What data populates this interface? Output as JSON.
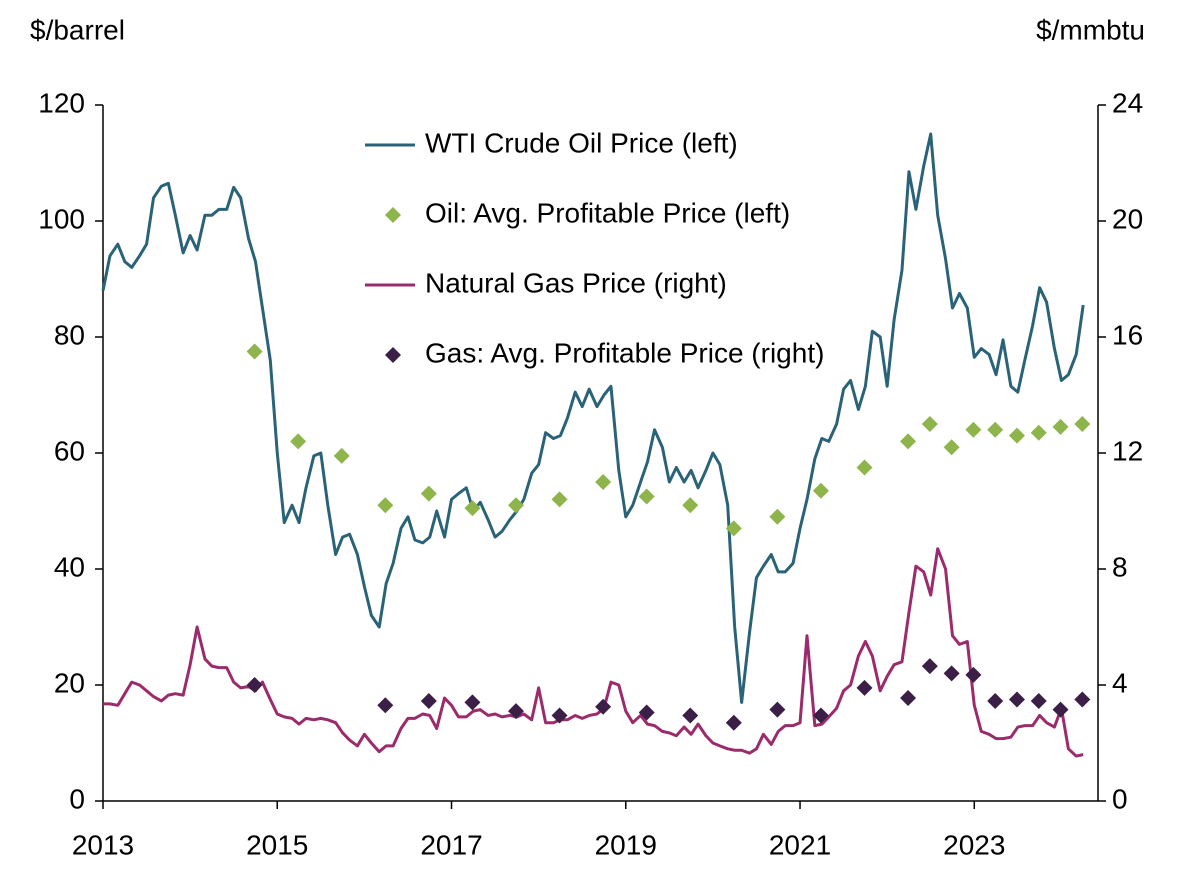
{
  "chart_data": {
    "type": "line",
    "y_label": "$/barrel",
    "y2_label": "$/mmbtu",
    "xlim": [
      2013,
      2024.42
    ],
    "xticks": [
      2013,
      2015,
      2017,
      2019,
      2021,
      2023
    ],
    "ylim": [
      0,
      120
    ],
    "yticks": [
      0,
      20,
      40,
      60,
      80,
      100,
      120
    ],
    "y2lim": [
      0,
      24
    ],
    "y2ticks": [
      0,
      4,
      8,
      12,
      16,
      20,
      24
    ],
    "grid": false,
    "x": [
      2013,
      2013.08,
      2013.17,
      2013.25,
      2013.33,
      2013.42,
      2013.5,
      2013.58,
      2013.67,
      2013.75,
      2013.83,
      2013.92,
      2014,
      2014.08,
      2014.17,
      2014.25,
      2014.33,
      2014.42,
      2014.5,
      2014.58,
      2014.67,
      2014.75,
      2014.83,
      2014.92,
      2015,
      2015.08,
      2015.17,
      2015.25,
      2015.33,
      2015.42,
      2015.5,
      2015.58,
      2015.67,
      2015.75,
      2015.83,
      2015.92,
      2016,
      2016.08,
      2016.17,
      2016.25,
      2016.33,
      2016.42,
      2016.5,
      2016.58,
      2016.67,
      2016.75,
      2016.83,
      2016.92,
      2017,
      2017.08,
      2017.17,
      2017.25,
      2017.33,
      2017.42,
      2017.5,
      2017.58,
      2017.67,
      2017.75,
      2017.83,
      2017.92,
      2018,
      2018.08,
      2018.17,
      2018.25,
      2018.33,
      2018.42,
      2018.5,
      2018.58,
      2018.67,
      2018.75,
      2018.83,
      2018.92,
      2019,
      2019.08,
      2019.17,
      2019.25,
      2019.33,
      2019.42,
      2019.5,
      2019.58,
      2019.67,
      2019.75,
      2019.83,
      2019.92,
      2020,
      2020.08,
      2020.17,
      2020.25,
      2020.33,
      2020.42,
      2020.5,
      2020.58,
      2020.67,
      2020.75,
      2020.83,
      2020.92,
      2021,
      2021.08,
      2021.17,
      2021.25,
      2021.33,
      2021.42,
      2021.5,
      2021.58,
      2021.67,
      2021.75,
      2021.83,
      2021.92,
      2022,
      2022.08,
      2022.17,
      2022.25,
      2022.33,
      2022.42,
      2022.5,
      2022.58,
      2022.67,
      2022.75,
      2022.83,
      2022.92,
      2023,
      2023.08,
      2023.17,
      2023.25,
      2023.33,
      2023.42,
      2023.5,
      2023.58,
      2023.67,
      2023.75,
      2023.83,
      2023.92,
      2024,
      2024.08,
      2024.17,
      2024.25
    ],
    "series": [
      {
        "name": "WTI Crude Oil Price (left)",
        "type": "line",
        "axis": "y",
        "color": "#2a6378",
        "values": [
          88,
          94,
          96,
          93,
          92,
          94,
          96,
          104,
          106,
          106.5,
          101,
          94.5,
          97.5,
          95,
          101,
          101,
          102,
          102,
          105.8,
          104,
          97,
          93,
          85,
          76,
          60,
          48,
          51,
          48,
          54,
          59.5,
          60,
          51,
          42.5,
          45.5,
          46,
          42.5,
          37,
          32,
          30,
          37.5,
          41,
          47,
          49,
          45,
          44.5,
          45.5,
          50,
          45.5,
          52,
          53,
          54,
          50,
          51.5,
          48.5,
          45.5,
          46.5,
          48.5,
          50,
          52,
          56.5,
          58,
          63.5,
          62.5,
          63,
          66,
          70.5,
          68,
          71,
          68,
          70,
          71.5,
          57,
          49,
          51,
          55,
          58.5,
          64,
          61,
          55,
          57.5,
          55,
          57,
          54,
          57,
          60,
          58,
          51,
          30,
          17,
          29,
          38.5,
          40.5,
          42.5,
          39.5,
          39.5,
          41,
          47,
          52,
          59,
          62.5,
          62,
          65,
          71,
          72.5,
          67.5,
          71.5,
          81,
          80,
          71.5,
          83,
          91.5,
          108.5,
          102,
          109.5,
          115,
          101,
          93.5,
          85,
          87.5,
          85,
          76.5,
          78,
          77,
          73.5,
          79.5,
          71.5,
          70.5,
          76,
          82,
          88.5,
          86,
          78,
          72.5,
          73.5,
          77,
          85.5
        ]
      },
      {
        "name": "Oil: Avg. Profitable Price (left)",
        "type": "scatter",
        "axis": "y",
        "color": "#8db54b",
        "x": [
          2014.74,
          2015.24,
          2015.74,
          2016.24,
          2016.74,
          2017.24,
          2017.74,
          2018.24,
          2018.74,
          2019.24,
          2019.74,
          2020.24,
          2020.74,
          2021.24,
          2021.74,
          2022.24,
          2022.49,
          2022.74,
          2022.99,
          2023.24,
          2023.49,
          2023.74,
          2023.99,
          2024.24
        ],
        "values": [
          77.5,
          62,
          59.5,
          51,
          53,
          50.5,
          51,
          52,
          55,
          52.5,
          51,
          47,
          49,
          53.5,
          57.5,
          62,
          65,
          61,
          64,
          64,
          63,
          63.5,
          64.5,
          65
        ]
      },
      {
        "name": "Natural Gas Price (right)",
        "type": "line",
        "axis": "y2",
        "color": "#9b2b6b",
        "values": [
          3.35,
          3.35,
          3.3,
          3.7,
          4.1,
          4.0,
          3.8,
          3.6,
          3.45,
          3.65,
          3.7,
          3.65,
          4.7,
          6.0,
          4.9,
          4.65,
          4.6,
          4.6,
          4.1,
          3.9,
          3.95,
          3.8,
          4.1,
          3.5,
          3.0,
          2.9,
          2.85,
          2.65,
          2.85,
          2.8,
          2.85,
          2.8,
          2.7,
          2.35,
          2.1,
          1.9,
          2.3,
          2.0,
          1.7,
          1.9,
          1.9,
          2.5,
          2.85,
          2.85,
          3.0,
          2.95,
          2.5,
          3.55,
          3.3,
          2.9,
          2.9,
          3.1,
          3.15,
          2.95,
          3.0,
          2.9,
          2.95,
          2.9,
          3.0,
          2.8,
          3.9,
          2.7,
          2.7,
          2.8,
          2.8,
          2.95,
          2.85,
          2.95,
          3.0,
          3.2,
          4.1,
          4.0,
          3.1,
          2.7,
          2.95,
          2.65,
          2.6,
          2.4,
          2.35,
          2.25,
          2.55,
          2.3,
          2.65,
          2.25,
          2.0,
          1.9,
          1.8,
          1.75,
          1.75,
          1.65,
          1.8,
          2.3,
          1.95,
          2.4,
          2.6,
          2.6,
          2.7,
          5.7,
          2.6,
          2.65,
          2.9,
          3.2,
          3.8,
          4.0,
          5.0,
          5.5,
          5.0,
          3.8,
          4.3,
          4.7,
          4.8,
          6.5,
          8.1,
          7.9,
          7.1,
          8.7,
          8.0,
          5.7,
          5.4,
          5.5,
          3.3,
          2.4,
          2.3,
          2.15,
          2.15,
          2.2,
          2.55,
          2.6,
          2.6,
          2.95,
          2.7,
          2.55,
          3.2,
          1.8,
          1.55,
          1.6
        ]
      },
      {
        "name": "Gas: Avg. Profitable Price (right)",
        "type": "scatter",
        "axis": "y2",
        "color": "#3b1f47",
        "x": [
          2014.74,
          2016.24,
          2016.74,
          2017.24,
          2017.74,
          2018.24,
          2018.74,
          2019.24,
          2019.74,
          2020.24,
          2020.74,
          2021.24,
          2021.74,
          2022.24,
          2022.49,
          2022.74,
          2022.99,
          2023.24,
          2023.49,
          2023.74,
          2023.99,
          2024.24
        ],
        "values": [
          4.0,
          3.3,
          3.45,
          3.4,
          3.1,
          2.95,
          3.25,
          3.05,
          2.95,
          2.7,
          3.15,
          2.95,
          3.9,
          3.55,
          4.65,
          4.4,
          4.35,
          3.45,
          3.5,
          3.45,
          3.15,
          3.5
        ]
      }
    ]
  }
}
